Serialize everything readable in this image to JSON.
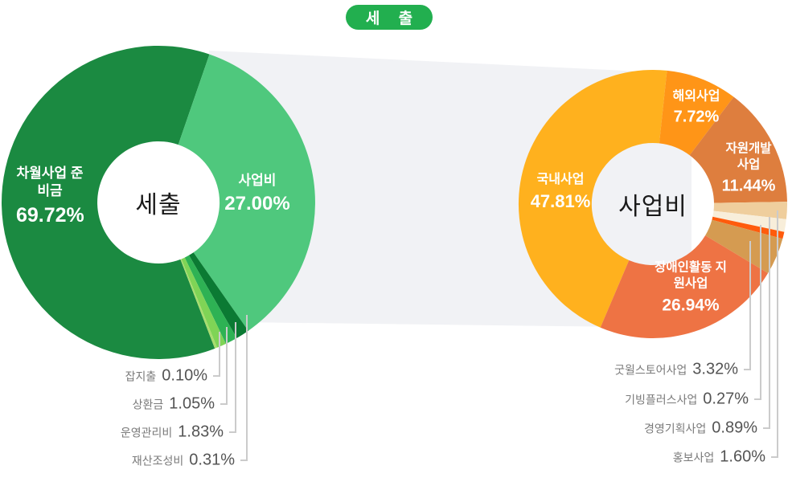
{
  "page": {
    "title_badge": "세 출",
    "badge_color": "#22AF4F",
    "background": "#ffffff"
  },
  "flow_band": {
    "color": "#F1F2F5"
  },
  "callout_line_color": "#CBCBCB",
  "chart_data": [
    {
      "id": "left",
      "type": "pie",
      "donut": true,
      "title": "세출",
      "center_label": "세출",
      "legend_position": "labels-inside-and-callouts",
      "segments": [
        {
          "id": "biz",
          "label": "사업비",
          "value": 27.0,
          "pct": "27.00%",
          "color": "#4FC87D"
        },
        {
          "id": "property",
          "label": "재산조성비",
          "value": 0.31,
          "pct": "0.31%",
          "color": "#0B7A33"
        },
        {
          "id": "ops",
          "label": "운영관리비",
          "value": 1.83,
          "pct": "1.83%",
          "color": "#2EB254"
        },
        {
          "id": "repay",
          "label": "상환금",
          "value": 1.05,
          "pct": "1.05%",
          "color": "#7FD456"
        },
        {
          "id": "misc",
          "label": "잡지출",
          "value": 0.1,
          "pct": "0.10%",
          "color": "#A8DD6E"
        },
        {
          "id": "reserve",
          "label": "차월사업 준비금",
          "value": 69.72,
          "pct": "69.72%",
          "color": "#1B8A41"
        }
      ]
    },
    {
      "id": "right",
      "type": "pie",
      "donut": true,
      "title": "사업비",
      "center_label": "사업비",
      "legend_position": "labels-inside-and-callouts",
      "segments": [
        {
          "id": "overseas",
          "label": "해외사업",
          "value": 7.72,
          "pct": "7.72%",
          "color": "#FF9517"
        },
        {
          "id": "resource",
          "label": "자원개발사업",
          "value": 11.44,
          "pct": "11.44%",
          "color": "#DE7E3E"
        },
        {
          "id": "pr",
          "label": "홍보사업",
          "value": 1.6,
          "pct": "1.60%",
          "color": "#EFCE9D"
        },
        {
          "id": "planning",
          "label": "경영기획사업",
          "value": 0.89,
          "pct": "0.89%",
          "color": "#F8EEDA"
        },
        {
          "id": "giving",
          "label": "기빙플러스사업",
          "value": 0.27,
          "pct": "0.27%",
          "color": "#FF5B0C"
        },
        {
          "id": "goodwill",
          "label": "굿윌스토어사업",
          "value": 3.32,
          "pct": "3.32%",
          "color": "#D59B51"
        },
        {
          "id": "disability",
          "label": "장애인활동 지원사업",
          "value": 26.94,
          "pct": "26.94%",
          "color": "#EE7344"
        },
        {
          "id": "domestic",
          "label": "국내사업",
          "value": 47.81,
          "pct": "47.81%",
          "color": "#FFB11E"
        }
      ]
    }
  ]
}
